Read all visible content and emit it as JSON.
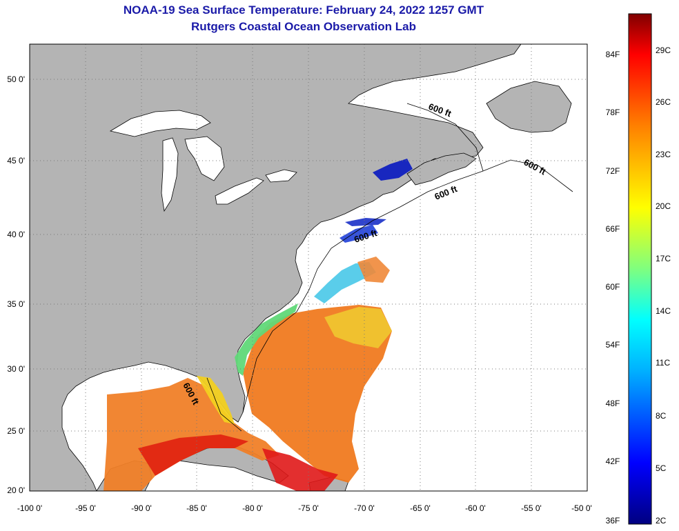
{
  "title": {
    "line1": "NOAA-19 Sea Surface Temperature:  February 24, 2022 1257 GMT",
    "line2": "Rutgers Coastal Ocean Observation Lab"
  },
  "map": {
    "lon_range": [
      -100,
      -50
    ],
    "lat_range": [
      20,
      52
    ],
    "lat_ticks": [
      {
        "value": 50,
        "label": "50 0'"
      },
      {
        "value": 45,
        "label": "45 0'"
      },
      {
        "value": 40,
        "label": "40 0'"
      },
      {
        "value": 35,
        "label": "35 0'"
      },
      {
        "value": 30,
        "label": "30 0'"
      },
      {
        "value": 25,
        "label": "25 0'"
      },
      {
        "value": 20,
        "label": "20 0'"
      }
    ],
    "lon_ticks": [
      {
        "value": -100,
        "label": "-100 0'"
      },
      {
        "value": -95,
        "label": "-95 0'"
      },
      {
        "value": -90,
        "label": "-90 0'"
      },
      {
        "value": -85,
        "label": "-85 0'"
      },
      {
        "value": -80,
        "label": "-80 0'"
      },
      {
        "value": -75,
        "label": "-75 0'"
      },
      {
        "value": -70,
        "label": "-70 0'"
      },
      {
        "value": -65,
        "label": "-65 0'"
      },
      {
        "value": -60,
        "label": "-60 0'"
      },
      {
        "value": -55,
        "label": "-55 0'"
      },
      {
        "value": -50,
        "label": "-50 0'"
      }
    ],
    "contour_label": "600 ft",
    "grid": "dotted",
    "colors": {
      "land": "#b4b4b4",
      "water_nodata": "#ffffff",
      "coastline": "#000000"
    }
  },
  "colorbar": {
    "fahrenheit_labels": [
      "84F",
      "78F",
      "72F",
      "66F",
      "60F",
      "54F",
      "48F",
      "42F",
      "36F"
    ],
    "celsius_labels": [
      "29C",
      "26C",
      "23C",
      "20C",
      "17C",
      "14C",
      "11C",
      "8C",
      "5C",
      "2C"
    ],
    "gradient_stops": [
      "#000080",
      "#0000ff",
      "#00b0ff",
      "#00ffff",
      "#7fff7f",
      "#ffff00",
      "#ff8000",
      "#ff0000",
      "#800000"
    ]
  }
}
